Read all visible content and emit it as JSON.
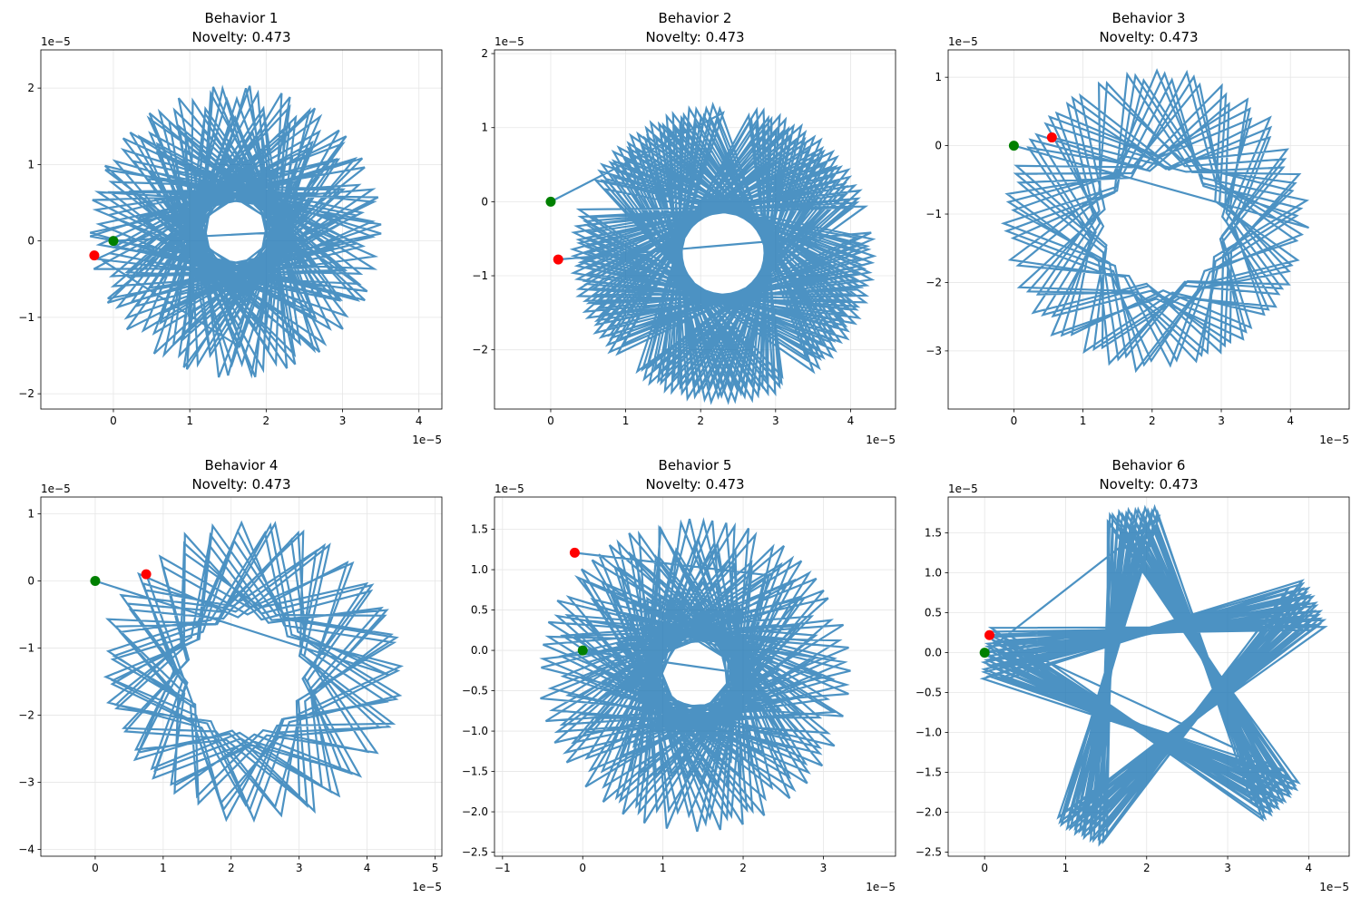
{
  "figure": {
    "rows": 2,
    "cols": 3
  },
  "chart_data": [
    {
      "type": "line",
      "title": "Behavior 1",
      "subtitle": "Novelty: 0.473",
      "xlim": [
        -0.95,
        4.3
      ],
      "ylim": [
        -2.2,
        2.5
      ],
      "xticks": [
        0,
        1,
        2,
        3,
        4
      ],
      "yticks": [
        -2,
        -1,
        0,
        1,
        2
      ],
      "xtick_labels": [
        "0",
        "1",
        "2",
        "3",
        "4"
      ],
      "ytick_labels": [
        "−2",
        "−1",
        "0",
        "1",
        "2"
      ],
      "x_offset_label": "1e−5",
      "y_offset_label": "1e−5",
      "grid": true,
      "pattern": {
        "kind": "spiral",
        "cx": 1.6,
        "cy": 0.12,
        "r_in": 0.05,
        "r_out": 1.92,
        "step_deg": 136.7,
        "segments": 240
      },
      "start_point": {
        "x": 0.0,
        "y": 0.0,
        "color": "#008000"
      },
      "end_point": {
        "x": -0.25,
        "y": -0.19,
        "color": "#ff0000"
      },
      "line_color": "#1f77b4"
    },
    {
      "type": "line",
      "title": "Behavior 2",
      "subtitle": "Novelty: 0.473",
      "xlim": [
        -0.75,
        4.6
      ],
      "ylim": [
        -2.8,
        2.05
      ],
      "xticks": [
        0,
        1,
        2,
        3,
        4
      ],
      "yticks": [
        -2,
        -1,
        0,
        1,
        2
      ],
      "xtick_labels": [
        "0",
        "1",
        "2",
        "3",
        "4"
      ],
      "ytick_labels": [
        "−2",
        "−1",
        "0",
        "1",
        "2"
      ],
      "x_offset_label": "1e−5",
      "y_offset_label": "1e−5",
      "grid": true,
      "pattern": {
        "kind": "star",
        "cx": 2.3,
        "cy": -0.7,
        "r_out": 1.9,
        "r_in": 0.9,
        "step_deg": 144,
        "drift_deg": 1.3,
        "segments": 240
      },
      "start_point": {
        "x": 0.0,
        "y": 0.0,
        "color": "#008000"
      },
      "end_point": {
        "x": 0.1,
        "y": -0.78,
        "color": "#ff0000"
      },
      "line_color": "#1f77b4"
    },
    {
      "type": "line",
      "title": "Behavior 3",
      "subtitle": "Novelty: 0.473",
      "xlim": [
        -0.95,
        4.85
      ],
      "ylim": [
        -3.85,
        1.4
      ],
      "xticks": [
        0,
        1,
        2,
        3,
        4
      ],
      "yticks": [
        -3,
        -2,
        -1,
        0,
        1
      ],
      "xtick_labels": [
        "0",
        "1",
        "2",
        "3",
        "4"
      ],
      "ytick_labels": [
        "−3",
        "−2",
        "−1",
        "0",
        "1"
      ],
      "x_offset_label": "1e−5",
      "y_offset_label": "1e−5",
      "grid": true,
      "pattern": {
        "kind": "ring",
        "cx": 2.15,
        "cy": -1.2,
        "r_in": 1.0,
        "r_out": 2.3,
        "step_deg": 40.6,
        "segments": 180
      },
      "start_point": {
        "x": 0.0,
        "y": 0.0,
        "color": "#008000"
      },
      "end_point": {
        "x": 0.55,
        "y": 0.12,
        "color": "#ff0000"
      },
      "line_color": "#1f77b4"
    },
    {
      "type": "line",
      "title": "Behavior 4",
      "subtitle": "Novelty: 0.473",
      "xlim": [
        -0.8,
        5.1
      ],
      "ylim": [
        -4.1,
        1.25
      ],
      "xticks": [
        0,
        1,
        2,
        3,
        4,
        5
      ],
      "yticks": [
        -4,
        -3,
        -2,
        -1,
        0,
        1
      ],
      "xtick_labels": [
        "0",
        "1",
        "2",
        "3",
        "4",
        "5"
      ],
      "ytick_labels": [
        "−4",
        "−3",
        "−2",
        "−1",
        "0",
        "1"
      ],
      "x_offset_label": "1e−5",
      "y_offset_label": "1e−5",
      "grid": true,
      "pattern": {
        "kind": "ring",
        "cx": 2.2,
        "cy": -1.4,
        "r_in": 1.0,
        "r_out": 2.3,
        "step_deg": 39.4,
        "segments": 180
      },
      "start_point": {
        "x": 0.0,
        "y": 0.0,
        "color": "#008000"
      },
      "end_point": {
        "x": 0.75,
        "y": 0.1,
        "color": "#ff0000"
      },
      "line_color": "#1f77b4"
    },
    {
      "type": "line",
      "title": "Behavior 5",
      "subtitle": "Novelty: 0.473",
      "xlim": [
        -1.1,
        3.9
      ],
      "ylim": [
        -2.55,
        1.9
      ],
      "xticks": [
        -1,
        0,
        1,
        2,
        3
      ],
      "yticks": [
        -2.5,
        -2.0,
        -1.5,
        -1.0,
        -0.5,
        0.0,
        0.5,
        1.0,
        1.5
      ],
      "xtick_labels": [
        "−1",
        "0",
        "1",
        "2",
        "3"
      ],
      "ytick_labels": [
        "−2.5",
        "−2.0",
        "−1.5",
        "−1.0",
        "−0.5",
        "0.0",
        "0.5",
        "1.0",
        "1.5"
      ],
      "x_offset_label": "1e−5",
      "y_offset_label": "1e−5",
      "grid": true,
      "pattern": {
        "kind": "spiral",
        "cx": 1.4,
        "cy": -0.3,
        "r_in": 0.05,
        "r_out": 1.95,
        "step_deg": 137.3,
        "segments": 240
      },
      "start_point": {
        "x": 0.0,
        "y": 0.0,
        "color": "#008000"
      },
      "end_point": {
        "x": -0.1,
        "y": 1.21,
        "color": "#ff0000"
      },
      "line_color": "#1f77b4"
    },
    {
      "type": "line",
      "title": "Behavior 6",
      "subtitle": "Novelty: 0.473",
      "xlim": [
        -0.45,
        4.5
      ],
      "ylim": [
        -2.55,
        1.95
      ],
      "xticks": [
        0,
        1,
        2,
        3,
        4
      ],
      "yticks": [
        -2.5,
        -2.0,
        -1.5,
        -1.0,
        -0.5,
        0.0,
        0.5,
        1.0,
        1.5
      ],
      "xtick_labels": [
        "0",
        "1",
        "2",
        "3",
        "4"
      ],
      "ytick_labels": [
        "−2.5",
        "−2.0",
        "−1.5",
        "−1.0",
        "−0.5",
        "0.0",
        "0.5",
        "1.0",
        "1.5"
      ],
      "x_offset_label": "1e−5",
      "y_offset_label": "1e−5",
      "grid": true,
      "pattern": {
        "kind": "star",
        "cx": 2.15,
        "cy": -0.35,
        "r_out": 2.05,
        "r_in": 0.0,
        "step_deg": 144,
        "drift_deg": 0.45,
        "segments": 200
      },
      "start_point": {
        "x": 0.0,
        "y": 0.0,
        "color": "#008000"
      },
      "end_point": {
        "x": 0.06,
        "y": 0.22,
        "color": "#ff0000"
      },
      "line_color": "#1f77b4"
    }
  ]
}
